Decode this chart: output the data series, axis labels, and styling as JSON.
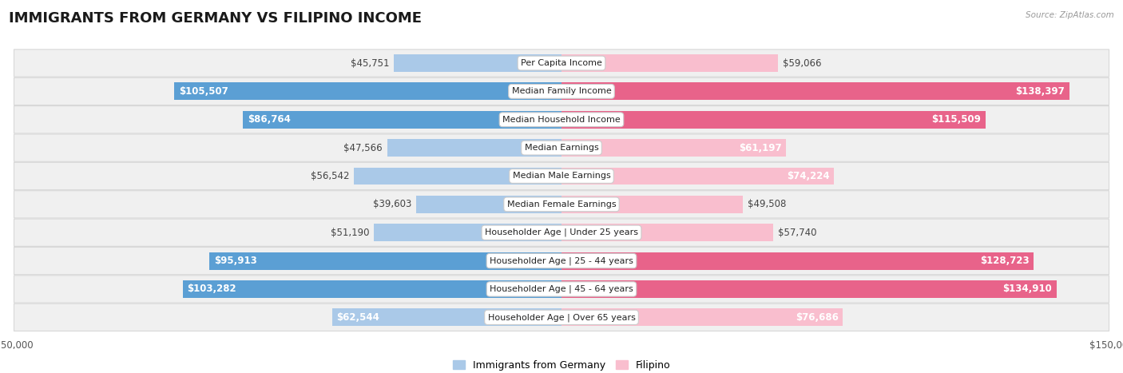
{
  "title": "IMMIGRANTS FROM GERMANY VS FILIPINO INCOME",
  "source": "Source: ZipAtlas.com",
  "categories": [
    "Per Capita Income",
    "Median Family Income",
    "Median Household Income",
    "Median Earnings",
    "Median Male Earnings",
    "Median Female Earnings",
    "Householder Age | Under 25 years",
    "Householder Age | 25 - 44 years",
    "Householder Age | 45 - 64 years",
    "Householder Age | Over 65 years"
  ],
  "germany_values": [
    45751,
    105507,
    86764,
    47566,
    56542,
    39603,
    51190,
    95913,
    103282,
    62544
  ],
  "filipino_values": [
    59066,
    138397,
    115509,
    61197,
    74224,
    49508,
    57740,
    128723,
    134910,
    76686
  ],
  "germany_labels": [
    "$45,751",
    "$105,507",
    "$86,764",
    "$47,566",
    "$56,542",
    "$39,603",
    "$51,190",
    "$95,913",
    "$103,282",
    "$62,544"
  ],
  "filipino_labels": [
    "$59,066",
    "$138,397",
    "$115,509",
    "$61,197",
    "$74,224",
    "$49,508",
    "$57,740",
    "$128,723",
    "$134,910",
    "$76,686"
  ],
  "germany_color_light": "#aac9e8",
  "germany_color_dark": "#5b9fd4",
  "filipino_color_light": "#f9bece",
  "filipino_color_dark": "#e8638a",
  "max_value": 150000,
  "bar_height": 0.62,
  "background_color": "#ffffff",
  "row_bg_color": "#f0f0f0",
  "row_border_color": "#d8d8d8",
  "legend_germany": "Immigrants from Germany",
  "legend_filipino": "Filipino",
  "title_fontsize": 13,
  "label_fontsize": 8.5,
  "category_fontsize": 8.0,
  "axis_fontsize": 8.5,
  "inside_label_threshold": 60000
}
